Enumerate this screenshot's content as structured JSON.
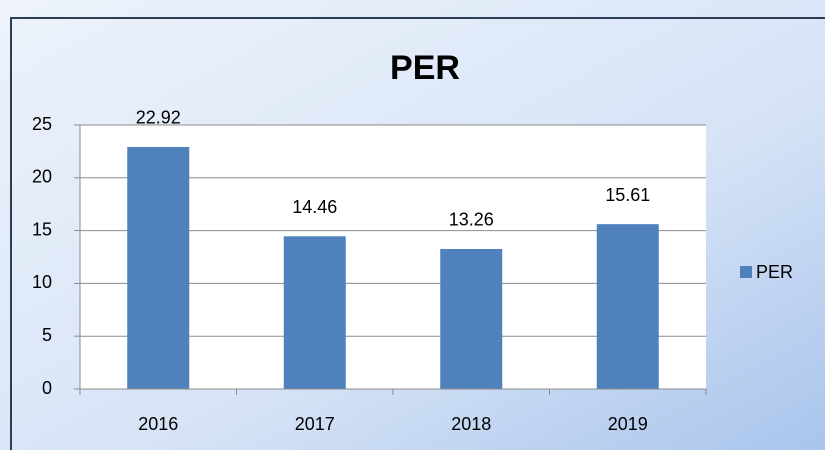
{
  "chart_data": {
    "type": "bar",
    "title": "PER",
    "categories": [
      "2016",
      "2017",
      "2018",
      "2019"
    ],
    "series": [
      {
        "name": "PER",
        "color": "#4f81bd",
        "values": [
          22.92,
          14.46,
          13.26,
          15.61
        ]
      }
    ],
    "ylim": [
      0,
      25
    ],
    "yticks": [
      0,
      5,
      10,
      15,
      20,
      25
    ],
    "grid": true,
    "legend": "right"
  }
}
